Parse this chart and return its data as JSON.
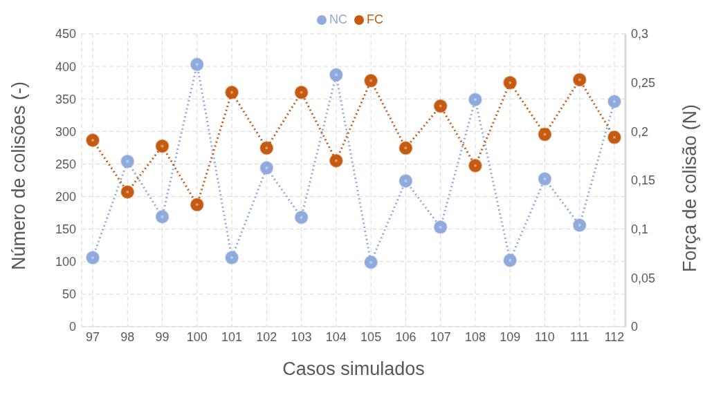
{
  "chart_data": {
    "type": "line",
    "xlabel": "Casos simulados",
    "ylabel": "Número de colisões (-)",
    "y2label": "Força de colisão (N)",
    "categories": [
      "97",
      "98",
      "99",
      "100",
      "101",
      "102",
      "103",
      "104",
      "105",
      "106",
      "107",
      "108",
      "109",
      "110",
      "111",
      "112"
    ],
    "series": [
      {
        "name": "NC",
        "color": "#8faadc",
        "values": [
          106,
          254,
          169,
          403,
          106,
          244,
          168,
          387,
          99,
          224,
          153,
          349,
          102,
          227,
          156,
          346
        ]
      },
      {
        "name": "FC",
        "color": "#c55a11",
        "axis": "y2",
        "values": [
          0.191,
          0.138,
          0.185,
          0.125,
          0.24,
          0.183,
          0.24,
          0.17,
          0.252,
          0.183,
          0.226,
          0.165,
          0.25,
          0.197,
          0.253,
          0.194
        ]
      }
    ],
    "ylim": [
      0,
      450
    ],
    "yticks": [
      0,
      50,
      100,
      150,
      200,
      250,
      300,
      350,
      400,
      450
    ],
    "y2lim": [
      0,
      0.3
    ],
    "y2ticks": [
      0,
      {
        "value": 0.05,
        "label": "0,05"
      },
      {
        "value": 0.1,
        "label": "0,1"
      },
      {
        "value": 0.15,
        "label": "0,15"
      },
      {
        "value": 0.2,
        "label": "0,2"
      },
      {
        "value": 0.25,
        "label": "0,25"
      },
      {
        "value": 0.3,
        "label": "0,3"
      }
    ],
    "grid": true,
    "legend": "top",
    "marker": "circle",
    "line_style": "dotted"
  }
}
